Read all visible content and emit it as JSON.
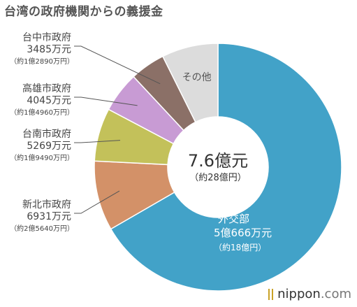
{
  "chart_data": {
    "type": "pie",
    "title": "台湾の政府機関からの義援金",
    "unit": "万元",
    "center_total": {
      "value": "7.6億元",
      "sub": "（約28億円）"
    },
    "slices": [
      {
        "label": "外交部",
        "value": 50666,
        "value_text": "5億666万元",
        "yen_text": "（約18億円）",
        "color": "#42a2c8"
      },
      {
        "label": "新北市政府",
        "value": 6931,
        "value_text": "6931万元",
        "yen_text": "（約2億5640万円）",
        "color": "#d39168"
      },
      {
        "label": "台南市政府",
        "value": 5269,
        "value_text": "5269万元",
        "yen_text": "（約1億9490万円）",
        "color": "#c3c15a"
      },
      {
        "label": "高雄市政府",
        "value": 4045,
        "value_text": "4045万元",
        "yen_text": "（約1億4960万円）",
        "color": "#c89bd4"
      },
      {
        "label": "台中市政府",
        "value": 3485,
        "value_text": "3485万元",
        "yen_text": "（約1億2890万円）",
        "color": "#8b7067"
      },
      {
        "label": "その他",
        "value": 5600,
        "value_text": "",
        "yen_text": "",
        "color": "#dcdcdc"
      }
    ]
  },
  "branding": {
    "logo_name": "nippon",
    "logo_domain": ".com",
    "brand_color": "#c9a227"
  }
}
